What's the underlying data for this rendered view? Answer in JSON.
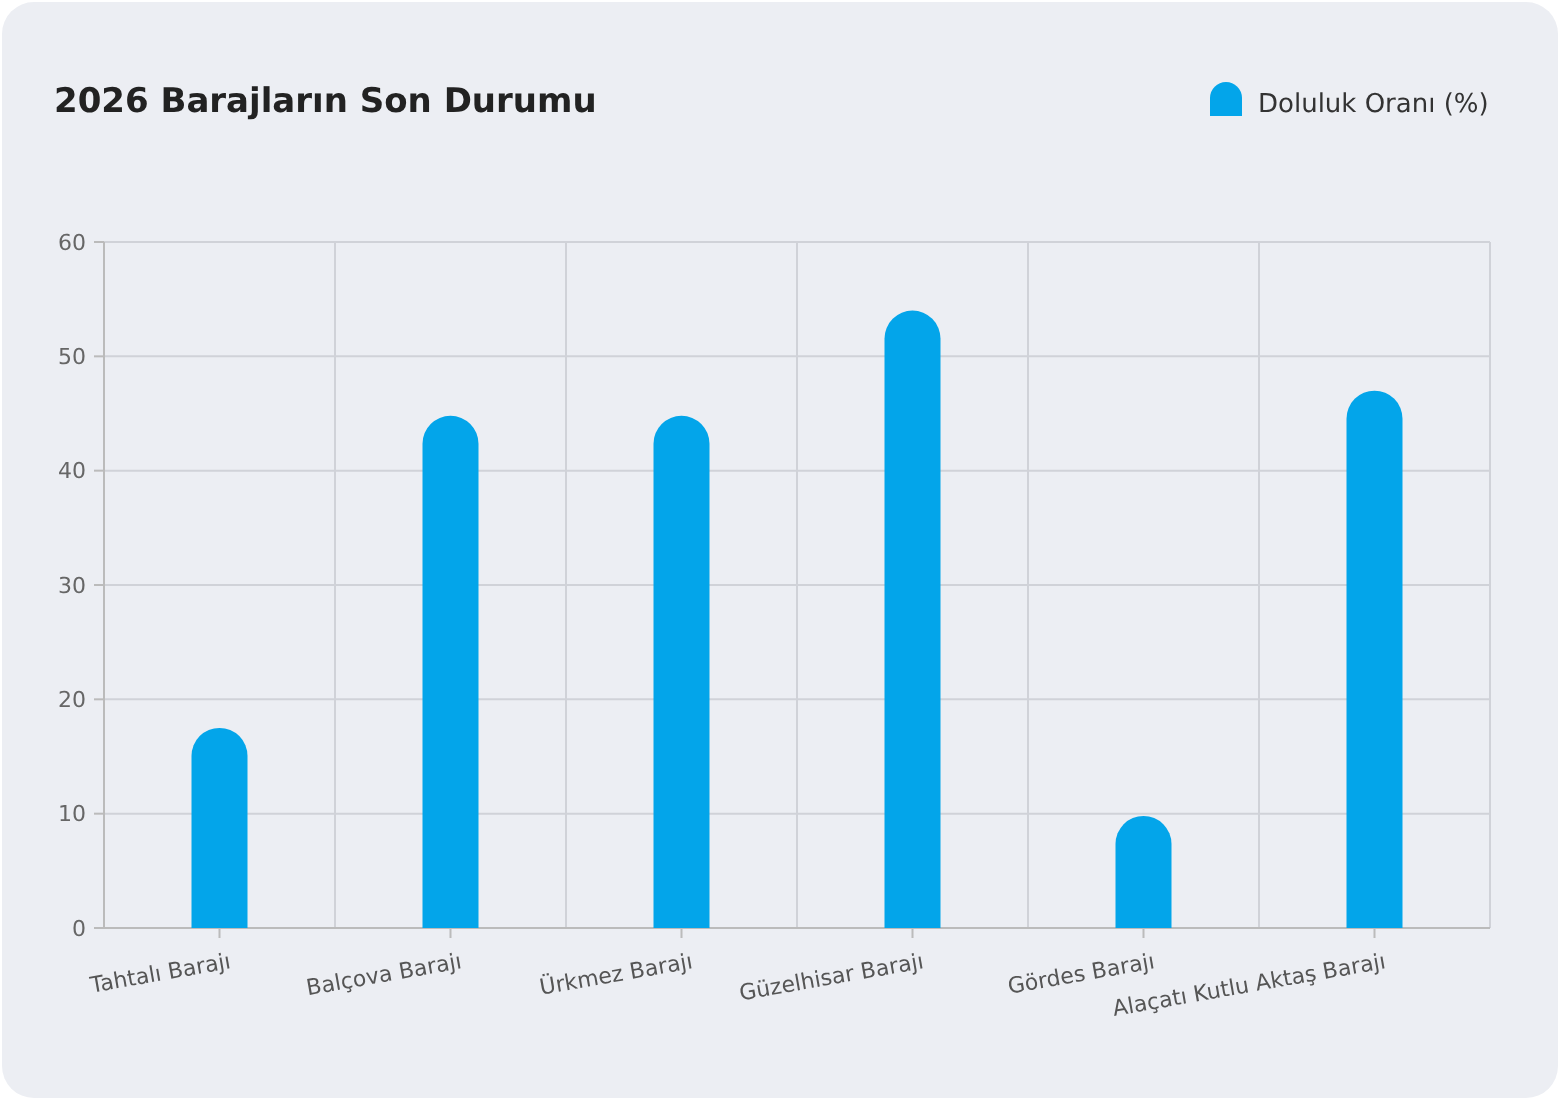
{
  "chart_data": {
    "type": "bar",
    "title": "2026 Barajların Son Durumu",
    "categories": [
      "Tahtalı Barajı",
      "Balçova Barajı",
      "Ürkmez Barajı",
      "Güzelhisar Barajı",
      "Gördes Barajı",
      "Alaçatı Kutlu Aktaş Barajı"
    ],
    "series": [
      {
        "name": "Doluluk Oranı (%)",
        "color": "#03a5ea",
        "values": [
          17.5,
          44.8,
          44.8,
          54,
          9.8,
          47
        ]
      }
    ],
    "ylim": [
      0,
      60
    ],
    "yticks": [
      0,
      10,
      20,
      30,
      40,
      50,
      60
    ],
    "grid": true,
    "legend": "top right"
  }
}
